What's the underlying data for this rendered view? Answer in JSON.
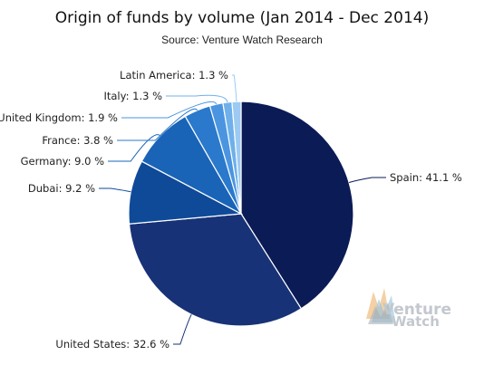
{
  "chart_data": {
    "type": "pie",
    "title": "Origin of funds by volume (Jan 2014 - Dec 2014)",
    "subtitle": "Source: Venture Watch Research",
    "unit": "%",
    "legend": "none",
    "slices": [
      {
        "label": "Spain",
        "value": 41.1,
        "display": "Spain: 41.1 %",
        "color": "#0b1b55"
      },
      {
        "label": "United States",
        "value": 32.6,
        "display": "United States: 32.6 %",
        "color": "#173276"
      },
      {
        "label": "Dubai",
        "value": 9.2,
        "display": "Dubai: 9.2 %",
        "color": "#0f4a98"
      },
      {
        "label": "Germany",
        "value": 9.0,
        "display": "Germany: 9.0 %",
        "color": "#1a64b8"
      },
      {
        "label": "France",
        "value": 3.8,
        "display": "France: 3.8 %",
        "color": "#2a79cc"
      },
      {
        "label": "United Kingdom",
        "value": 1.9,
        "display": "United Kingdom: 1.9 %",
        "color": "#4b95e0"
      },
      {
        "label": "Italy",
        "value": 1.3,
        "display": "Italy: 1.3 %",
        "color": "#6fb0ea"
      },
      {
        "label": "Latin America",
        "value": 1.3,
        "display": "Latin America: 1.3 %",
        "color": "#9ccaf2"
      }
    ]
  },
  "watermark": {
    "line1": "Venture",
    "line2": "Watch",
    "icon": "venture-watch-logo-icon"
  }
}
